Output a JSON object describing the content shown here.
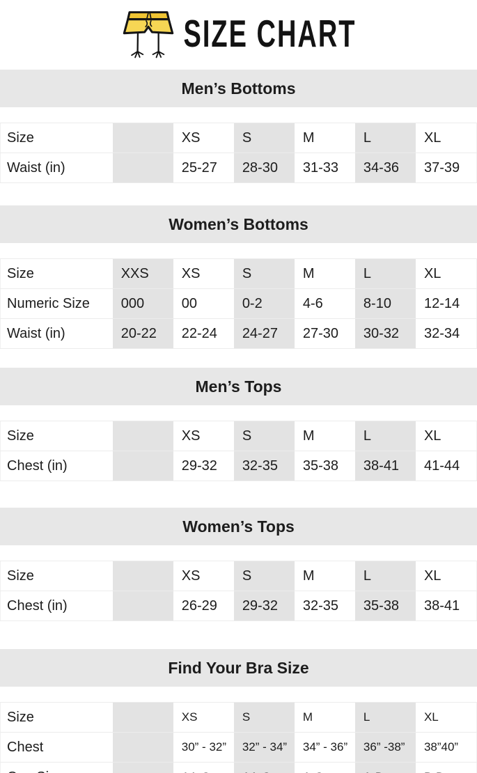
{
  "page": {
    "title": "SIZE CHART",
    "icon": "shorts-with-bird-legs-icon"
  },
  "colors": {
    "band_background": "#e7e7e7",
    "shaded_column": "#e3e3e3",
    "table_border": "#ececec",
    "text": "#1c1c1c",
    "icon_yellow": "#f3cd43"
  },
  "sections": [
    {
      "title": "Men’s Bottoms",
      "rows": [
        [
          "Size",
          "",
          "XS",
          "S",
          "M",
          "L",
          "XL"
        ],
        [
          "Waist (in)",
          "",
          "25-27",
          "28-30",
          "31-33",
          "34-36",
          "37-39"
        ]
      ]
    },
    {
      "title": "Women’s Bottoms",
      "rows": [
        [
          "Size",
          "XXS",
          "XS",
          "S",
          "M",
          "L",
          "XL"
        ],
        [
          "Numeric Size",
          "000",
          "00",
          "0-2",
          "4-6",
          "8-10",
          "12-14"
        ],
        [
          "Waist (in)",
          "20-22",
          "22-24",
          "24-27",
          "27-30",
          "30-32",
          "32-34"
        ]
      ]
    },
    {
      "title": "Men’s Tops",
      "rows": [
        [
          "Size",
          "",
          "XS",
          "S",
          "M",
          "L",
          "XL"
        ],
        [
          "Chest (in)",
          "",
          "29-32",
          "32-35",
          "35-38",
          "38-41",
          "41-44"
        ]
      ]
    },
    {
      "title": "Women’s Tops",
      "rows": [
        [
          "Size",
          "",
          "XS",
          "S",
          "M",
          "L",
          "XL"
        ],
        [
          "Chest (in)",
          "",
          "26-29",
          "29-32",
          "32-35",
          "35-38",
          "38-41"
        ]
      ]
    },
    {
      "title": "Find Your Bra Size",
      "rows": [
        [
          "Size",
          "",
          "XS",
          "S",
          "M",
          "L",
          "XL"
        ],
        [
          "Chest",
          "",
          "30” - 32”",
          "32” - 34”",
          "34” - 36”",
          "36” -38”",
          "38”40”"
        ],
        [
          "Cup Size",
          "",
          "AA-C",
          "AA-C",
          "A-C",
          "A-D",
          "B-D"
        ]
      ]
    }
  ]
}
